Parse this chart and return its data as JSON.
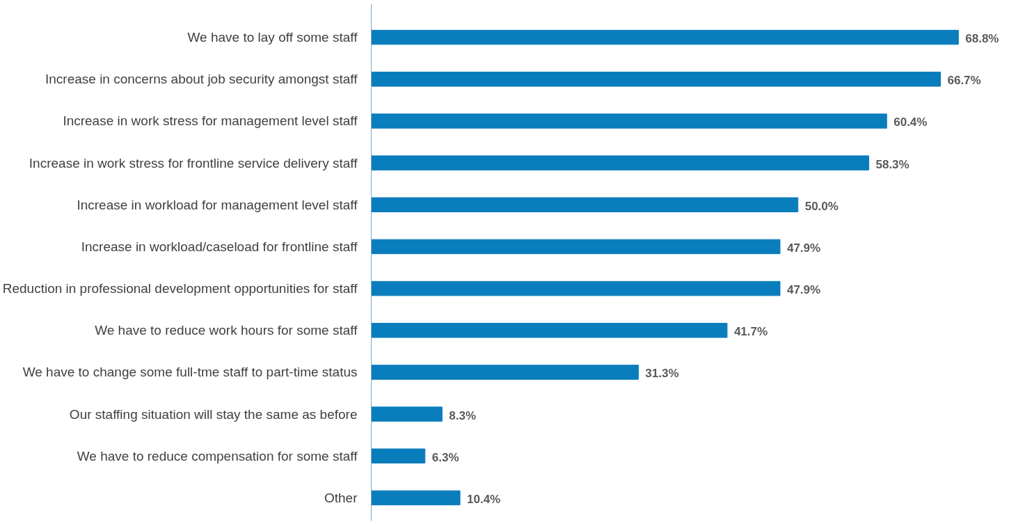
{
  "chart_data": {
    "type": "bar",
    "orientation": "horizontal",
    "categories": [
      "We have to lay off some staff",
      "Increase in concerns about job security amongst staff",
      "Increase in work stress for management level staff",
      "Increase in work stress for frontline service delivery staff",
      "Increase in workload for management level staff",
      "Increase in workload/caseload for frontline staff",
      "Reduction in professional development opportunities for staff",
      "We have to reduce work hours for some staff",
      "We have to change some full-tme staff to part-time status",
      "Our staffing situation will stay the same as before",
      "We have to reduce compensation for some staff",
      "Other"
    ],
    "values": [
      68.8,
      66.7,
      60.4,
      58.3,
      50.0,
      47.9,
      47.9,
      41.7,
      31.3,
      8.3,
      6.3,
      10.4
    ],
    "value_labels": [
      "68.8%",
      "66.7%",
      "60.4%",
      "58.3%",
      "50.0%",
      "47.9%",
      "47.9%",
      "41.7%",
      "31.3%",
      "8.3%",
      "6.3%",
      "10.4%"
    ],
    "color": "#0a7dbd",
    "grid": false
  }
}
